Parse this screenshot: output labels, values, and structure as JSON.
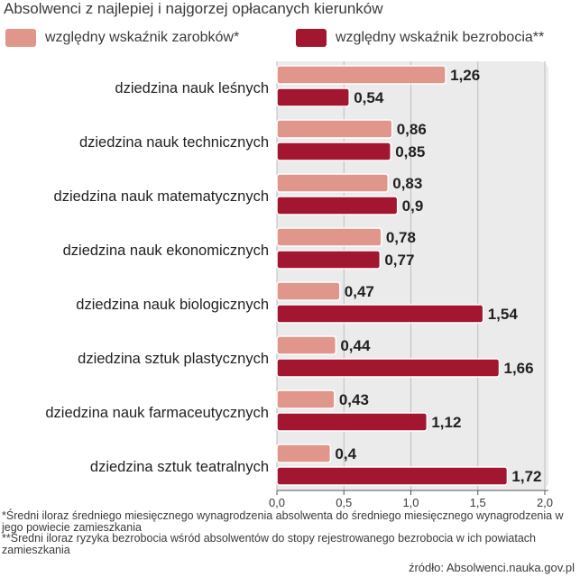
{
  "title": "Absolwenci z najlepiej i najgorzej opłacanych kierunków",
  "chart_data": {
    "type": "bar",
    "orientation": "horizontal",
    "categories": [
      "dziedzina nauk leśnych",
      "dziedzina nauk technicznych",
      "dziedzina nauk matematycznych",
      "dziedzina nauk ekonomicznych",
      "dziedzina nauk biologicznych",
      "dziedzina sztuk plastycznych",
      "dziedzina nauk farmaceutycznych",
      "dziedzina sztuk teatralnych"
    ],
    "series": [
      {
        "name": "względny wskaźnik zarobków*",
        "color": "#e0968a",
        "values": [
          1.26,
          0.86,
          0.83,
          0.78,
          0.47,
          0.44,
          0.43,
          0.4
        ],
        "labels": [
          "1,26",
          "0,86",
          "0,83",
          "0,78",
          "0,47",
          "0,44",
          "0,43",
          "0,4"
        ]
      },
      {
        "name": "względny wskaźnik bezrobocia**",
        "color": "#a3162f",
        "values": [
          0.54,
          0.85,
          0.9,
          0.77,
          1.54,
          1.66,
          1.12,
          1.72
        ],
        "labels": [
          "0,54",
          "0,85",
          "0,9",
          "0,77",
          "1,54",
          "1,66",
          "1,12",
          "1,72"
        ]
      }
    ],
    "xlim": [
      0,
      2
    ],
    "ticks": [
      0,
      0.5,
      1,
      1.5,
      2
    ],
    "tick_labels": [
      "0,0",
      "0,5",
      "1,0",
      "1,5",
      "2,0"
    ],
    "grid": true,
    "legend_position": "top"
  },
  "footnotes": [
    "*Średni iloraz średniego miesięcznego wynagrodzenia absolwenta do średniego miesięcznego wynagrodzenia w jego powiecie zamieszkania",
    "**Średni iloraz ryzyka bezrobocia wśród absolwentów do stopy rejestrowanego bezrobocia w ich powiatach zamieszkania"
  ],
  "source": "źródło: Absolwenci.nauka.gov.pl"
}
